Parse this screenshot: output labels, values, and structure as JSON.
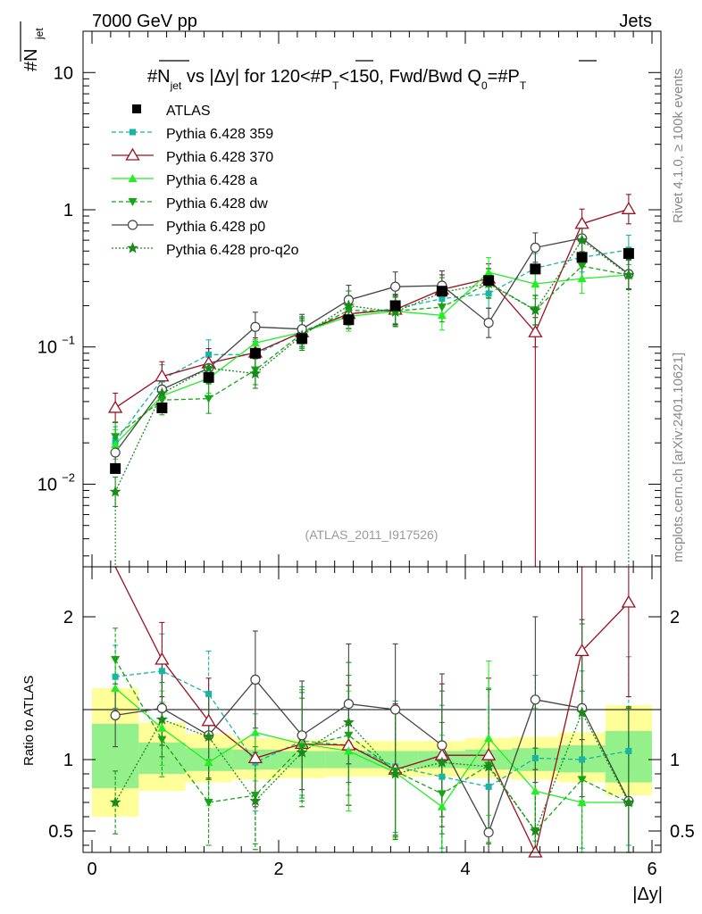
{
  "header": {
    "left": "7000 GeV pp",
    "right": "Jets"
  },
  "side": {
    "top": "Rivet 4.1.0, ≥ 100k events",
    "bottom": "mcplots.cern.ch [arXiv:2401.10621]"
  },
  "chart_data": [
    {
      "type": "line",
      "panel": "main",
      "title_parts": {
        "a": "#N",
        "a_sub": "jet",
        "b": " vs |Δy| for 120<#P",
        "b_sub": "T",
        "c": "<150, Fwd/Bwd Q",
        "c_sub": "0",
        "d": "=#P",
        "d_sub": "T"
      },
      "ylabel": "#N",
      "ylabel_sub": "jet",
      "yscale": "log",
      "ylim": [
        0.0025,
        20
      ],
      "xlim": [
        -0.1,
        6.1
      ],
      "y_ticks": [
        {
          "v": 10,
          "label": "10"
        },
        {
          "v": 1,
          "label": "1"
        },
        {
          "v": 0.1,
          "label": "10",
          "exp": "−1"
        },
        {
          "v": 0.01,
          "label": "10",
          "exp": "−2"
        }
      ],
      "watermark": "(ATLAS_2011_I917526)",
      "x": [
        0.25,
        0.75,
        1.25,
        1.75,
        2.25,
        2.75,
        3.25,
        3.75,
        4.25,
        4.75,
        5.25,
        5.75
      ],
      "data": {
        "name": "ATLAS",
        "values": [
          0.013,
          0.036,
          0.06,
          0.09,
          0.115,
          0.158,
          0.2,
          0.255,
          0.305,
          0.37,
          0.45,
          0.48
        ]
      },
      "series": [
        {
          "name": "Pythia 6.428 359",
          "color": "#16b5a4",
          "dash": "5,3",
          "marker": "square-small",
          "values": [
            0.0205,
            0.058,
            0.088,
            0.088,
            0.13,
            0.175,
            0.19,
            0.225,
            0.245,
            0.375,
            0.45,
            0.51
          ]
        },
        {
          "name": "Pythia 6.428 370",
          "color": "#9b1022",
          "dash": "",
          "marker": "triangle-open",
          "values": [
            0.036,
            0.061,
            0.076,
            0.091,
            0.128,
            0.174,
            0.187,
            0.262,
            0.315,
            0.128,
            0.79,
            1.01
          ]
        },
        {
          "name": "Pythia 6.428 a",
          "color": "#22ee22",
          "dash": "",
          "marker": "triangle-up",
          "values": [
            0.0195,
            0.044,
            0.059,
            0.107,
            0.128,
            0.167,
            0.182,
            0.17,
            0.35,
            0.288,
            0.315,
            0.335
          ]
        },
        {
          "name": "Pythia 6.428 dw",
          "color": "#16a516",
          "dash": "5,3",
          "marker": "triangle-down",
          "values": [
            0.0222,
            0.041,
            0.042,
            0.068,
            0.125,
            0.185,
            0.183,
            0.195,
            0.292,
            0.186,
            0.388,
            0.335
          ]
        },
        {
          "name": "Pythia 6.428 p0",
          "color": "#444444",
          "dash": "",
          "marker": "circle-open",
          "values": [
            0.017,
            0.049,
            0.07,
            0.14,
            0.135,
            0.22,
            0.275,
            0.28,
            0.15,
            0.53,
            0.62,
            0.34
          ]
        },
        {
          "name": "Pythia 6.428 pro-q2o",
          "color": "#1a8a1a",
          "dash": "2,2",
          "marker": "star",
          "values": [
            0.0088,
            0.046,
            0.07,
            0.064,
            0.121,
            0.2,
            0.18,
            0.25,
            0.29,
            0.185,
            0.6,
            0.335
          ]
        }
      ]
    },
    {
      "type": "line",
      "panel": "ratio",
      "ylabel": "Ratio to ATLAS",
      "xlabel": "|Δy|",
      "ylim": [
        0.35,
        2.35
      ],
      "xlim": [
        -0.1,
        6.1
      ],
      "y_ticks": [
        {
          "v": 2,
          "label": "2"
        },
        {
          "v": 1,
          "label": "1"
        },
        {
          "v": 0.5,
          "label": "0.5"
        }
      ],
      "x_ticks": [
        {
          "v": 0,
          "label": "0"
        },
        {
          "v": 2,
          "label": "2"
        },
        {
          "v": 4,
          "label": "4"
        },
        {
          "v": 6,
          "label": "6"
        }
      ],
      "bands": [
        {
          "x0": 0.0,
          "x1": 0.5,
          "yellow": [
            0.6,
            1.5
          ],
          "green": [
            0.8,
            1.25
          ]
        },
        {
          "x0": 0.5,
          "x1": 1.0,
          "yellow": [
            0.78,
            1.26
          ],
          "green": [
            0.9,
            1.12
          ]
        },
        {
          "x0": 1.0,
          "x1": 1.5,
          "yellow": [
            0.84,
            1.18
          ],
          "green": [
            0.92,
            1.08
          ]
        },
        {
          "x0": 1.5,
          "x1": 2.0,
          "yellow": [
            0.86,
            1.15
          ],
          "green": [
            0.93,
            1.07
          ]
        },
        {
          "x0": 2.0,
          "x1": 2.5,
          "yellow": [
            0.87,
            1.14
          ],
          "green": [
            0.94,
            1.06
          ]
        },
        {
          "x0": 2.5,
          "x1": 3.0,
          "yellow": [
            0.88,
            1.13
          ],
          "green": [
            0.94,
            1.06
          ]
        },
        {
          "x0": 3.0,
          "x1": 3.5,
          "yellow": [
            0.88,
            1.13
          ],
          "green": [
            0.94,
            1.06
          ]
        },
        {
          "x0": 3.5,
          "x1": 4.0,
          "yellow": [
            0.88,
            1.13
          ],
          "green": [
            0.94,
            1.06
          ]
        },
        {
          "x0": 4.0,
          "x1": 4.5,
          "yellow": [
            0.87,
            1.15
          ],
          "green": [
            0.93,
            1.07
          ]
        },
        {
          "x0": 4.5,
          "x1": 5.0,
          "yellow": [
            0.86,
            1.16
          ],
          "green": [
            0.92,
            1.08
          ]
        },
        {
          "x0": 5.0,
          "x1": 5.5,
          "yellow": [
            0.84,
            1.19
          ],
          "green": [
            0.91,
            1.1
          ]
        },
        {
          "x0": 5.5,
          "x1": 6.0,
          "yellow": [
            0.75,
            1.38
          ],
          "green": [
            0.84,
            1.2
          ]
        }
      ],
      "series_values": {
        "Pythia 6.428 359": [
          1.58,
          1.62,
          1.46,
          0.98,
          1.13,
          1.1,
          0.95,
          0.88,
          0.81,
          1.01,
          1.0,
          1.06
        ],
        "Pythia 6.428 370": [
          2.8,
          1.7,
          1.27,
          1.01,
          1.11,
          1.1,
          0.93,
          1.03,
          1.03,
          0.35,
          1.76,
          2.1
        ],
        "Pythia 6.428 a": [
          1.5,
          1.22,
          0.98,
          1.19,
          1.11,
          1.06,
          0.91,
          0.67,
          1.15,
          0.78,
          0.7,
          0.7
        ],
        "Pythia 6.428 dw": [
          1.7,
          1.14,
          0.7,
          0.75,
          1.09,
          1.17,
          0.92,
          0.76,
          0.96,
          0.5,
          0.86,
          0.7
        ],
        "Pythia 6.428 p0": [
          1.31,
          1.36,
          1.17,
          1.56,
          1.17,
          1.39,
          1.35,
          1.1,
          0.49,
          1.42,
          1.36,
          0.71
        ],
        "Pythia 6.428 pro-q2o": [
          0.7,
          1.28,
          1.16,
          0.71,
          1.05,
          1.26,
          0.9,
          0.98,
          0.95,
          0.5,
          1.33,
          0.7
        ]
      }
    }
  ]
}
